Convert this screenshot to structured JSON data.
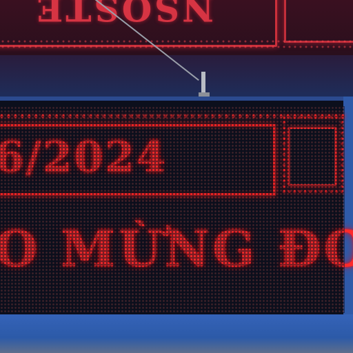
{
  "upper_sign": {
    "text": "NSQSTE"
  },
  "display": {
    "date_line": "6/2024",
    "message_line": "O MỪNG ĐO"
  },
  "colors": {
    "led_red": "#ff2a2a",
    "panel_blue": "#2c5aa8",
    "panel_black": "#0c0f1c"
  }
}
